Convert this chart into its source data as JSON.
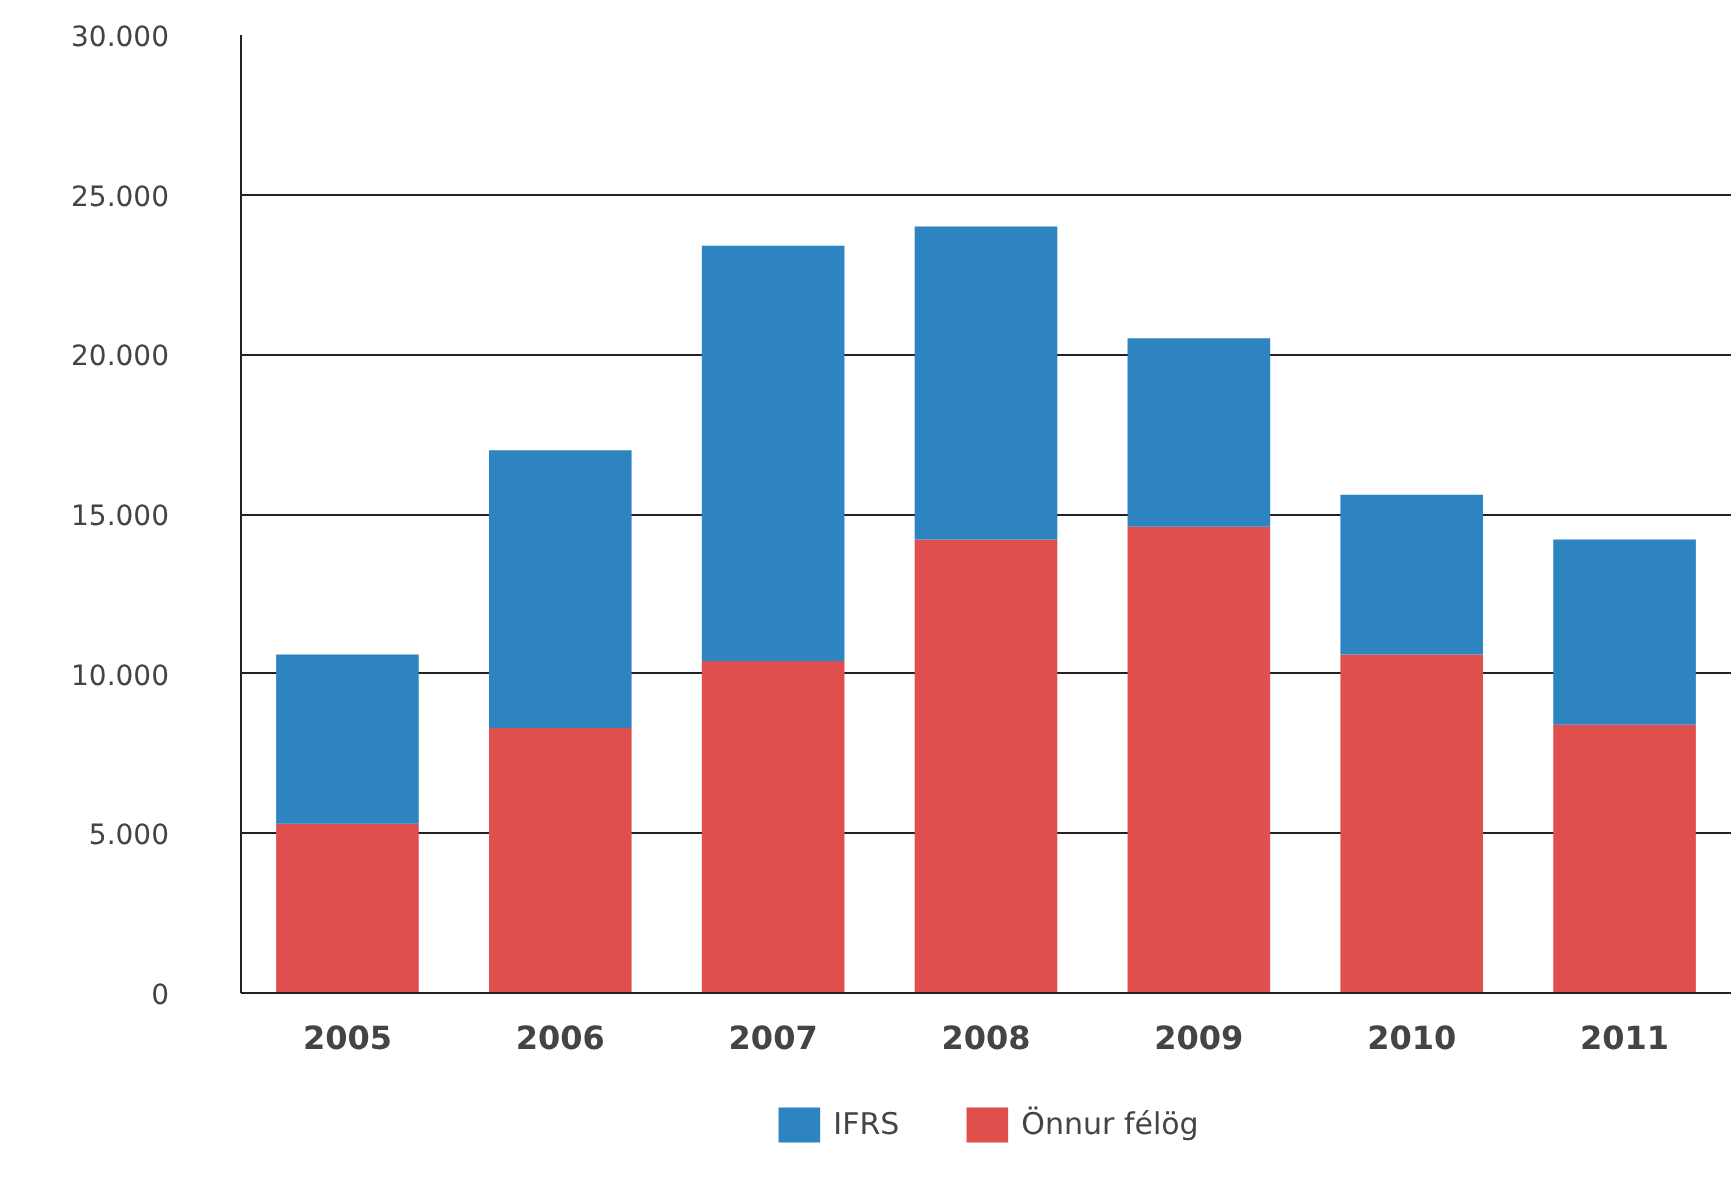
{
  "chart_data": {
    "type": "bar",
    "stacked": true,
    "categories": [
      "2005",
      "2006",
      "2007",
      "2008",
      "2009",
      "2010",
      "2011"
    ],
    "series": [
      {
        "name": "Önnur félög",
        "color": "#de4f4d",
        "values": [
          5300,
          8300,
          10400,
          14200,
          14600,
          10600,
          8400
        ]
      },
      {
        "name": "IFRS",
        "color": "#2e83c1",
        "values": [
          5300,
          8700,
          13000,
          9800,
          5900,
          5000,
          5800
        ]
      }
    ],
    "ylim": [
      0,
      30000
    ],
    "yticks": [
      {
        "value": 0,
        "label": "0"
      },
      {
        "value": 5000,
        "label": "5.000"
      },
      {
        "value": 10000,
        "label": "10.000"
      },
      {
        "value": 15000,
        "label": "15.000"
      },
      {
        "value": 20000,
        "label": "20.000"
      },
      {
        "value": 25000,
        "label": "25.000"
      },
      {
        "value": 30000,
        "label": "30.000"
      }
    ],
    "grid": "y",
    "legend": "bottom"
  }
}
